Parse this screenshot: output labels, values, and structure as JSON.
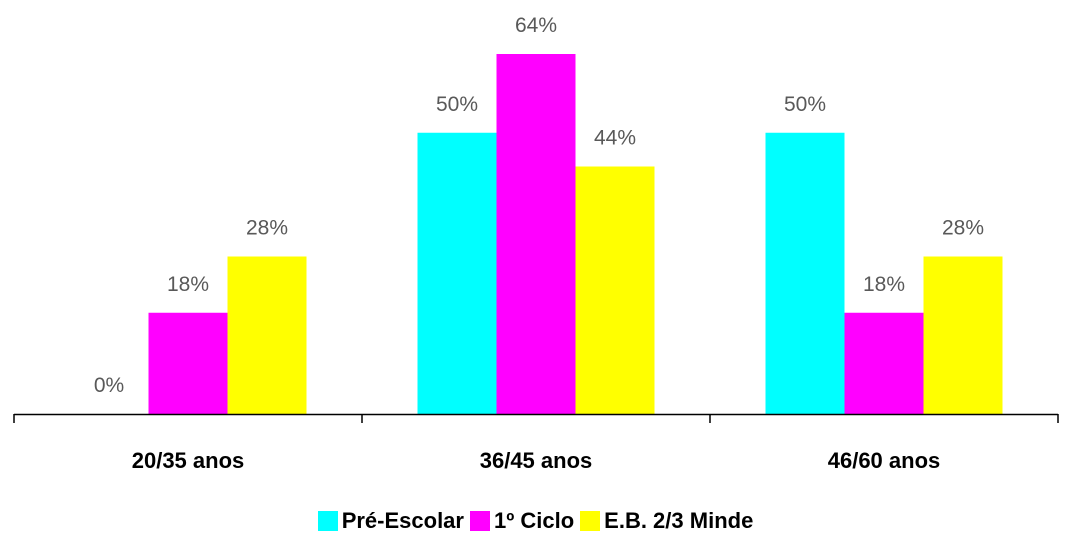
{
  "chart_data": {
    "type": "bar",
    "categories": [
      "20/35 anos",
      "36/45 anos",
      "46/60 anos"
    ],
    "series": [
      {
        "name": "Pré-Escolar",
        "values": [
          0,
          50,
          50
        ],
        "labels": [
          "0%",
          "50%",
          "50%"
        ],
        "color": "#00FFFF"
      },
      {
        "name": "1º Ciclo",
        "values": [
          18,
          64,
          18
        ],
        "labels": [
          "18%",
          "64%",
          "18%"
        ],
        "color": "#FF00FF"
      },
      {
        "name": "E.B. 2/3 Minde",
        "values": [
          28,
          44,
          28
        ],
        "labels": [
          "28%",
          "44%",
          "28%"
        ],
        "color": "#FFFF00"
      }
    ],
    "ylim": [
      0,
      64
    ],
    "grid": false,
    "legend_position": "bottom-center",
    "axis_color": "#000000",
    "data_label_color": "#595959"
  }
}
